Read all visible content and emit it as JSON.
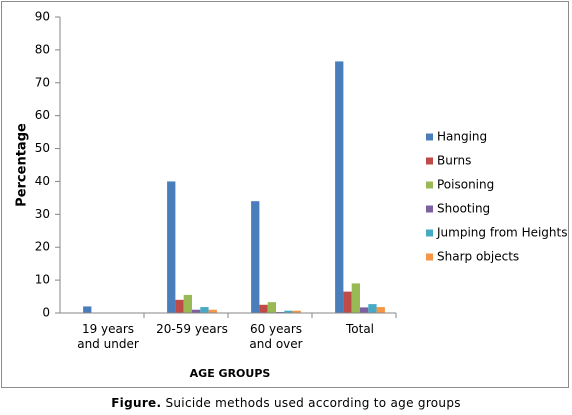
{
  "chart_data": {
    "type": "bar",
    "y_label": "Percentage",
    "x_label": "AGE GROUPS",
    "categories": [
      "19 years and under",
      "20-59 years",
      "60 years and over",
      "Total"
    ],
    "series": [
      {
        "name": "Hanging",
        "color": "#4a7ebb",
        "values": [
          2,
          40,
          34,
          76.5
        ]
      },
      {
        "name": "Burns",
        "color": "#be4b48",
        "values": [
          0,
          4,
          2.5,
          6.5
        ]
      },
      {
        "name": "Poisoning",
        "color": "#98b954",
        "values": [
          0,
          5.5,
          3.3,
          9
        ]
      },
      {
        "name": "Shooting",
        "color": "#7d60a0",
        "values": [
          0,
          1,
          0.3,
          1.7
        ]
      },
      {
        "name": "Jumping from Heights",
        "color": "#46aac5",
        "values": [
          0,
          1.8,
          0.7,
          2.7
        ]
      },
      {
        "name": "Sharp objects",
        "color": "#f79646",
        "values": [
          0,
          1,
          0.7,
          1.8
        ]
      }
    ],
    "ylim": [
      0,
      90
    ],
    "yticks": [
      0,
      10,
      20,
      30,
      40,
      50,
      60,
      70,
      80,
      90
    ],
    "grid": false,
    "legend": "right"
  },
  "caption": {
    "label": "Figure.",
    "text": "Suicide methods used according to age groups"
  }
}
